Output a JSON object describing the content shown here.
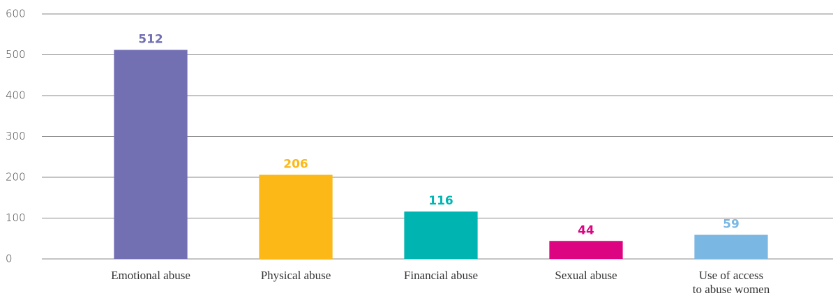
{
  "chart_data": {
    "type": "bar",
    "categories": [
      "Emotional abuse",
      "Physical abuse",
      "Financial abuse",
      "Sexual abuse",
      "Use of access\nto abuse women"
    ],
    "values": [
      512,
      206,
      116,
      44,
      59
    ],
    "colors": [
      "#7270b3",
      "#fbb817",
      "#00b5b1",
      "#dc0481",
      "#7ab7e3"
    ],
    "ylim": [
      0,
      600
    ],
    "yticks": [
      0,
      100,
      200,
      300,
      400,
      500,
      600
    ],
    "grid": true
  }
}
